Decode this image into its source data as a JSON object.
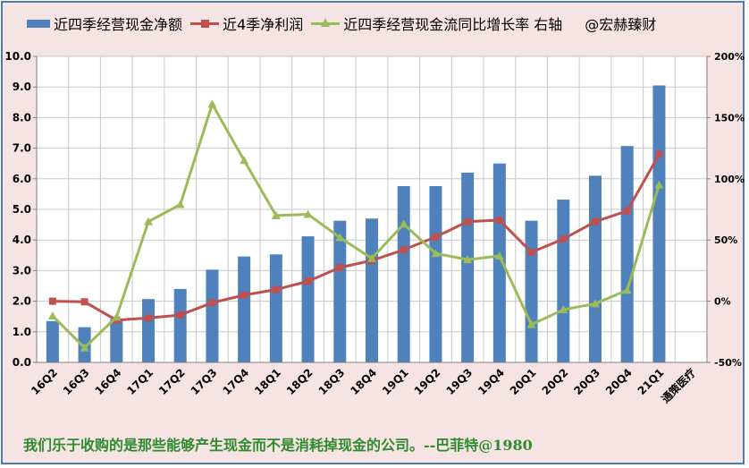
{
  "legend": {
    "bar_label": "近四季经营现金净额",
    "line1_label": "近4季净利润",
    "line2_label": "近四季经营现金流同比增长率 右轴",
    "watermark": "@宏赫臻财"
  },
  "quote": "我们乐于收购的是那些能够产生现金而不是消耗掉现金的公司。--巴菲特@1980",
  "colors": {
    "bar": "#4f81bd",
    "line1": "#c0504d",
    "line2": "#9bbb59",
    "background": "#f6e4e4",
    "quote": "#2e8b2e"
  },
  "chart_data": {
    "type": "bar",
    "categories": [
      "16Q2",
      "16Q3",
      "16Q4",
      "17Q1",
      "17Q2",
      "17Q3",
      "17Q4",
      "18Q1",
      "18Q2",
      "18Q3",
      "18Q4",
      "19Q1",
      "19Q2",
      "19Q3",
      "19Q4",
      "20Q1",
      "20Q2",
      "20Q3",
      "20Q4",
      "21Q1",
      "通策医疗"
    ],
    "series": [
      {
        "name": "近四季经营现金净额",
        "type": "bar",
        "axis": "left",
        "values": [
          1.35,
          1.15,
          1.42,
          2.07,
          2.4,
          3.03,
          3.46,
          3.53,
          4.12,
          4.63,
          4.7,
          5.76,
          5.76,
          6.2,
          6.5,
          4.63,
          5.32,
          6.1,
          7.07,
          9.05,
          null
        ]
      },
      {
        "name": "近4季净利润",
        "type": "line",
        "axis": "left",
        "values": [
          2.0,
          1.98,
          1.38,
          1.45,
          1.55,
          1.95,
          2.2,
          2.38,
          2.65,
          3.1,
          3.33,
          3.68,
          4.1,
          4.6,
          4.65,
          3.6,
          4.03,
          4.6,
          4.95,
          6.8,
          null
        ]
      },
      {
        "name": "近四季经营现金流同比增长率 右轴",
        "type": "line",
        "axis": "right",
        "values": [
          -12,
          -38,
          -13,
          65,
          79,
          161,
          115,
          70,
          71,
          52,
          35,
          63,
          39,
          34,
          37,
          -19,
          -7,
          -2,
          9,
          95,
          null
        ]
      }
    ],
    "y_left": {
      "min": 0,
      "max": 10,
      "step": 1,
      "tick_format": "0.0"
    },
    "y_right": {
      "min": -50,
      "max": 200,
      "step": 50,
      "tick_suffix": "%"
    },
    "grid": true,
    "legend_position": "top"
  }
}
